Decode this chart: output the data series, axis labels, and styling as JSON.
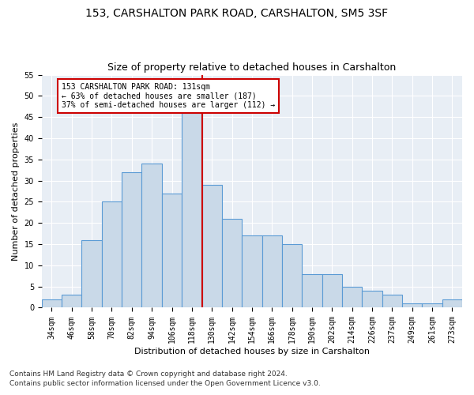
{
  "title1": "153, CARSHALTON PARK ROAD, CARSHALTON, SM5 3SF",
  "title2": "Size of property relative to detached houses in Carshalton",
  "xlabel": "Distribution of detached houses by size in Carshalton",
  "ylabel": "Number of detached properties",
  "bar_labels": [
    "34sqm",
    "46sqm",
    "58sqm",
    "70sqm",
    "82sqm",
    "94sqm",
    "106sqm",
    "118sqm",
    "130sqm",
    "142sqm",
    "154sqm",
    "166sqm",
    "178sqm",
    "190sqm",
    "202sqm",
    "214sqm",
    "226sqm",
    "237sqm",
    "249sqm",
    "261sqm",
    "273sqm"
  ],
  "bar_values": [
    2,
    3,
    16,
    25,
    32,
    34,
    27,
    46,
    29,
    21,
    17,
    17,
    15,
    8,
    8,
    5,
    4,
    3,
    1,
    1,
    2
  ],
  "bar_color": "#c9d9e8",
  "bar_edge_color": "#5b9bd5",
  "ylim": [
    0,
    55
  ],
  "yticks": [
    0,
    5,
    10,
    15,
    20,
    25,
    30,
    35,
    40,
    45,
    50,
    55
  ],
  "vline_x": 7.5,
  "annotation_line1": "153 CARSHALTON PARK ROAD: 131sqm",
  "annotation_line2": "← 63% of detached houses are smaller (187)",
  "annotation_line3": "37% of semi-detached houses are larger (112) →",
  "vline_color": "#cc0000",
  "annotation_box_color": "#cc0000",
  "background_color": "#e8eef5",
  "footer1": "Contains HM Land Registry data © Crown copyright and database right 2024.",
  "footer2": "Contains public sector information licensed under the Open Government Licence v3.0.",
  "title_fontsize": 10,
  "subtitle_fontsize": 9,
  "axis_label_fontsize": 8,
  "tick_fontsize": 7,
  "annotation_fontsize": 7,
  "footer_fontsize": 6.5
}
